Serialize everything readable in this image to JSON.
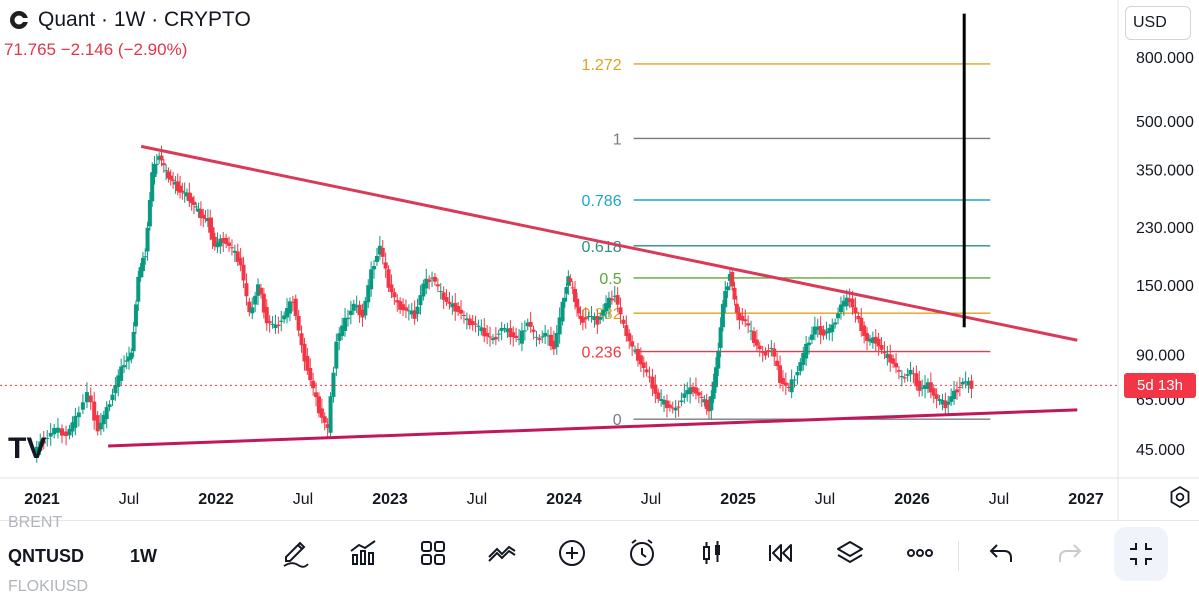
{
  "header": {
    "title": "Quant · 1W · CRYPTO",
    "change": "71.765  −2.146 (−2.90%)"
  },
  "currency": "USD",
  "countdown": "5d 13h",
  "watermark": "TV",
  "colors": {
    "up": "#089981",
    "down": "#f23645",
    "trendline": "#d93a58",
    "price_line": "#f23645"
  },
  "chart_data": {
    "type": "candlestick",
    "symbol": "QNTUSD",
    "interval": "1W",
    "y_scale": "log",
    "y_ticks": [
      "800.000",
      "500.000",
      "350.000",
      "230.000",
      "150.000",
      "90.000",
      "65.000",
      "45.000"
    ],
    "y_tick_values": [
      800,
      500,
      350,
      230,
      150,
      90,
      65,
      45
    ],
    "x_ticks": [
      "2021",
      "Jul",
      "2022",
      "Jul",
      "2023",
      "Jul",
      "2024",
      "Jul",
      "2025",
      "Jul",
      "2026",
      "Jul",
      "2027"
    ],
    "x_tick_bold": [
      true,
      false,
      true,
      false,
      true,
      false,
      true,
      false,
      true,
      false,
      true,
      false,
      true
    ],
    "x_tick_times": [
      2021.0,
      2021.5,
      2022.0,
      2022.5,
      2023.0,
      2023.5,
      2024.0,
      2024.5,
      2025.0,
      2025.5,
      2026.0,
      2026.5,
      2027.0
    ],
    "last_price": 71.765,
    "fib_levels": [
      {
        "label": "1.272",
        "price": 760,
        "color": "#e0a21b"
      },
      {
        "label": "1",
        "price": 440,
        "color": "#787b86"
      },
      {
        "label": "0.786",
        "price": 280,
        "color": "#1ea7c4"
      },
      {
        "label": "0.618",
        "price": 200,
        "color": "#2a8f85"
      },
      {
        "label": "0.5",
        "price": 158,
        "color": "#5aa63a"
      },
      {
        "label": "0.382",
        "price": 122,
        "color": "#e0a21b"
      },
      {
        "label": "0.236",
        "price": 92,
        "color": "#f23645"
      },
      {
        "label": "0",
        "price": 56,
        "color": "#787b86"
      }
    ],
    "fib_range_time": [
      2024.4,
      2026.45
    ],
    "upper_trendline": {
      "from": [
        2021.57,
        415
      ],
      "to": [
        2026.95,
        100
      ]
    },
    "lower_trendline": {
      "from": [
        2021.38,
        46
      ],
      "to": [
        2026.95,
        60
      ]
    },
    "vertical_marker": {
      "time": 2026.3,
      "from": 110,
      "to": 1100
    },
    "closes": [
      [
        2020.96,
        44
      ],
      [
        2021.02,
        48
      ],
      [
        2021.08,
        52
      ],
      [
        2021.15,
        50
      ],
      [
        2021.2,
        56
      ],
      [
        2021.27,
        68
      ],
      [
        2021.33,
        52
      ],
      [
        2021.38,
        60
      ],
      [
        2021.43,
        72
      ],
      [
        2021.48,
        85
      ],
      [
        2021.52,
        90
      ],
      [
        2021.56,
        160
      ],
      [
        2021.6,
        190
      ],
      [
        2021.64,
        340
      ],
      [
        2021.68,
        390
      ],
      [
        2021.72,
        340
      ],
      [
        2021.76,
        320
      ],
      [
        2021.8,
        300
      ],
      [
        2021.84,
        290
      ],
      [
        2021.88,
        270
      ],
      [
        2021.92,
        250
      ],
      [
        2021.96,
        240
      ],
      [
        2022.0,
        200
      ],
      [
        2022.05,
        210
      ],
      [
        2022.1,
        195
      ],
      [
        2022.15,
        175
      ],
      [
        2022.2,
        120
      ],
      [
        2022.25,
        150
      ],
      [
        2022.3,
        115
      ],
      [
        2022.35,
        110
      ],
      [
        2022.4,
        120
      ],
      [
        2022.45,
        135
      ],
      [
        2022.5,
        95
      ],
      [
        2022.55,
        75
      ],
      [
        2022.6,
        60
      ],
      [
        2022.65,
        52
      ],
      [
        2022.7,
        100
      ],
      [
        2022.75,
        115
      ],
      [
        2022.8,
        130
      ],
      [
        2022.85,
        120
      ],
      [
        2022.9,
        165
      ],
      [
        2022.95,
        200
      ],
      [
        2023.0,
        150
      ],
      [
        2023.05,
        130
      ],
      [
        2023.1,
        125
      ],
      [
        2023.15,
        120
      ],
      [
        2023.2,
        150
      ],
      [
        2023.25,
        160
      ],
      [
        2023.3,
        140
      ],
      [
        2023.35,
        130
      ],
      [
        2023.4,
        125
      ],
      [
        2023.45,
        115
      ],
      [
        2023.5,
        112
      ],
      [
        2023.55,
        105
      ],
      [
        2023.6,
        100
      ],
      [
        2023.65,
        110
      ],
      [
        2023.7,
        105
      ],
      [
        2023.75,
        100
      ],
      [
        2023.8,
        115
      ],
      [
        2023.85,
        100
      ],
      [
        2023.9,
        105
      ],
      [
        2023.95,
        95
      ],
      [
        2024.0,
        130
      ],
      [
        2024.03,
        160
      ],
      [
        2024.07,
        135
      ],
      [
        2024.1,
        115
      ],
      [
        2024.15,
        120
      ],
      [
        2024.2,
        115
      ],
      [
        2024.25,
        130
      ],
      [
        2024.3,
        140
      ],
      [
        2024.35,
        110
      ],
      [
        2024.4,
        95
      ],
      [
        2024.45,
        85
      ],
      [
        2024.5,
        75
      ],
      [
        2024.55,
        65
      ],
      [
        2024.6,
        62
      ],
      [
        2024.65,
        60
      ],
      [
        2024.7,
        68
      ],
      [
        2024.75,
        70
      ],
      [
        2024.8,
        65
      ],
      [
        2024.84,
        60
      ],
      [
        2024.88,
        80
      ],
      [
        2024.92,
        130
      ],
      [
        2024.96,
        165
      ],
      [
        2025.0,
        120
      ],
      [
        2025.05,
        115
      ],
      [
        2025.1,
        100
      ],
      [
        2025.15,
        90
      ],
      [
        2025.2,
        95
      ],
      [
        2025.25,
        75
      ],
      [
        2025.3,
        70
      ],
      [
        2025.35,
        80
      ],
      [
        2025.4,
        95
      ],
      [
        2025.45,
        110
      ],
      [
        2025.5,
        105
      ],
      [
        2025.55,
        110
      ],
      [
        2025.6,
        130
      ],
      [
        2025.65,
        135
      ],
      [
        2025.7,
        115
      ],
      [
        2025.75,
        100
      ],
      [
        2025.8,
        100
      ],
      [
        2025.85,
        90
      ],
      [
        2025.9,
        85
      ],
      [
        2025.95,
        75
      ],
      [
        2026.0,
        80
      ],
      [
        2026.05,
        70
      ],
      [
        2026.1,
        72
      ],
      [
        2026.15,
        65
      ],
      [
        2026.2,
        62
      ],
      [
        2026.25,
        68
      ],
      [
        2026.3,
        74
      ],
      [
        2026.35,
        71.8
      ]
    ]
  },
  "bottom": {
    "ghost_top": "BRENT",
    "symbol": "QNTUSD",
    "interval": "1W",
    "ghost_bottom": "FLOKIUSD"
  }
}
